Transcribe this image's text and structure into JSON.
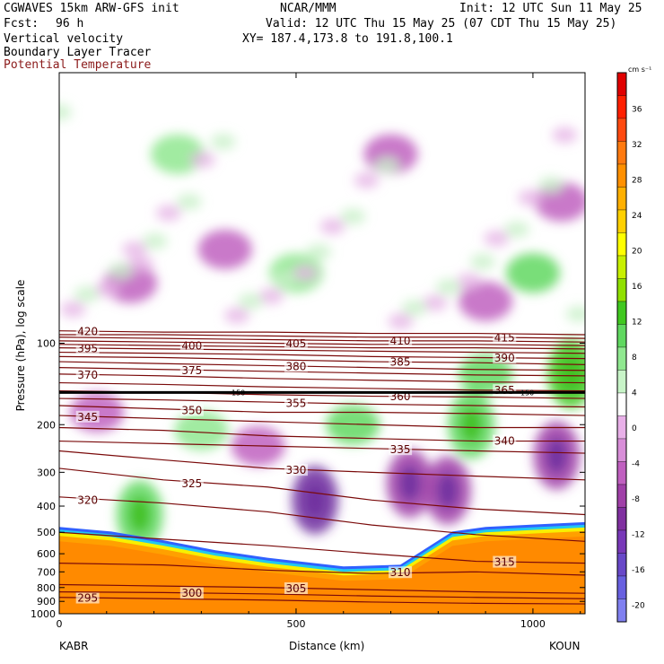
{
  "header": {
    "model": "CGWAVES 15km ARW-GFS init",
    "org": "NCAR/MMM",
    "init": "Init: 12 UTC Sun 11 May 25",
    "fcst_label": "Fcst:",
    "fcst_value": "96 h",
    "valid": "Valid: 12 UTC Thu 15 May 25 (07 CDT Thu 15 May 25)",
    "field1": "Vertical velocity",
    "xy": "XY= 187.4,173.8 to 191.8,100.1",
    "field2": "Boundary Layer Tracer",
    "field3": "Potential Temperature"
  },
  "chart_data": {
    "type": "cross-section",
    "xlabel": "Distance (km)",
    "ylabel": "Pressure (hPa), log scale",
    "x_range": [
      0,
      1110
    ],
    "x_ticks": [
      0,
      500,
      1000
    ],
    "x_end_labels": [
      "KABR",
      "KOUN"
    ],
    "y_scale": "log",
    "y_range": [
      1000,
      10
    ],
    "y_ticks": [
      100,
      200,
      300,
      400,
      500,
      600,
      700,
      800,
      900,
      1000
    ],
    "colorbar": {
      "units": "cm s⁻¹",
      "labels": [
        36,
        32,
        28,
        24,
        20,
        16,
        12,
        8,
        4,
        0,
        -4,
        -8,
        -12,
        -16,
        -20
      ],
      "colors": [
        "#e00000",
        "#ff2000",
        "#ff4a10",
        "#ff7a10",
        "#ff9000",
        "#ffb000",
        "#ffd000",
        "#ffff00",
        "#c8f000",
        "#90e000",
        "#40c820",
        "#60d860",
        "#90e890",
        "#c8f4c8",
        "#ffffff",
        "#e8b0e8",
        "#d88ed8",
        "#c060c0",
        "#a040a8",
        "#8030a0",
        "#7838b8",
        "#6848c8",
        "#6860e0",
        "#8080f0"
      ]
    },
    "theta_contours": [
      {
        "value": 295,
        "p": [
          870,
          880,
          890,
          905,
          915,
          920
        ]
      },
      {
        "value": 300,
        "p": [
          830,
          835,
          845,
          860,
          870,
          880
        ]
      },
      {
        "value": 305,
        "p": [
          780,
          790,
          800,
          815,
          830,
          840
        ]
      },
      {
        "value": 310,
        "p": [
          650,
          660,
          690,
          710,
          700,
          720
        ]
      },
      {
        "value": 315,
        "p": [
          500,
          530,
          560,
          600,
          640,
          650
        ]
      },
      {
        "value": 320,
        "p": [
          370,
          390,
          420,
          470,
          510,
          540
        ]
      },
      {
        "value": 325,
        "p": [
          290,
          320,
          340,
          380,
          410,
          430
        ]
      },
      {
        "value": 330,
        "p": [
          250,
          270,
          290,
          300,
          310,
          320
        ]
      },
      {
        "value": 335,
        "p": [
          230,
          235,
          240,
          245,
          250,
          255
        ]
      },
      {
        "value": 340,
        "p": [
          205,
          210,
          220,
          225,
          230,
          230
        ]
      },
      {
        "value": 345,
        "p": [
          185,
          190,
          195,
          200,
          205,
          205
        ]
      },
      {
        "value": 350,
        "p": [
          170,
          175,
          180,
          180,
          182,
          185
        ]
      },
      {
        "value": 355,
        "p": [
          160,
          162,
          165,
          168,
          170,
          172
        ]
      },
      {
        "value": 360,
        "p": [
          150,
          152,
          155,
          157,
          158,
          160
        ]
      },
      {
        "value": 365,
        "p": [
          140,
          142,
          145,
          147,
          149,
          150
        ]
      },
      {
        "value": 370,
        "p": [
          130,
          132,
          135,
          137,
          139,
          140
        ]
      },
      {
        "value": 375,
        "p": [
          123,
          125,
          127,
          129,
          131,
          132
        ]
      },
      {
        "value": 380,
        "p": [
          117,
          119,
          121,
          123,
          125,
          126
        ]
      },
      {
        "value": 385,
        "p": [
          112,
          113,
          115,
          117,
          118,
          120
        ]
      },
      {
        "value": 390,
        "p": [
          108,
          109,
          110,
          112,
          113,
          114
        ]
      },
      {
        "value": 395,
        "p": [
          104,
          105,
          106,
          107,
          108,
          109
        ]
      },
      {
        "value": 400,
        "p": [
          101,
          102,
          103,
          104,
          104,
          105
        ]
      },
      {
        "value": 405,
        "p": [
          98,
          99,
          100,
          101,
          101,
          102
        ]
      },
      {
        "value": 410,
        "p": [
          95,
          96,
          97,
          98,
          98,
          99
        ]
      },
      {
        "value": 415,
        "p": [
          93,
          93,
          94,
          95,
          95,
          96
        ]
      },
      {
        "value": 420,
        "p": [
          90,
          91,
          91,
          92,
          92,
          93
        ]
      }
    ],
    "theta_x_knots": [
      0,
      220,
      440,
      660,
      880,
      1110
    ],
    "tropopause_p": 152,
    "tropopause_labels": [
      "150",
      "150"
    ],
    "w_features": [
      {
        "x": 540,
        "p": 380,
        "w": -14
      },
      {
        "x": 820,
        "p": 350,
        "w": -12
      },
      {
        "x": 740,
        "p": 330,
        "w": -10
      },
      {
        "x": 1050,
        "p": 260,
        "w": -10
      },
      {
        "x": 170,
        "p": 430,
        "w": 10
      },
      {
        "x": 620,
        "p": 200,
        "w": 8
      },
      {
        "x": 870,
        "p": 200,
        "w": 10
      },
      {
        "x": 1080,
        "p": 130,
        "w": 12
      },
      {
        "x": 900,
        "p": 130,
        "w": 8
      },
      {
        "x": 300,
        "p": 210,
        "w": 6
      },
      {
        "x": 420,
        "p": 240,
        "w": -6
      },
      {
        "x": 80,
        "p": 180,
        "w": -6
      },
      {
        "x": 700,
        "p": 20,
        "w": -8
      },
      {
        "x": 250,
        "p": 20,
        "w": 6
      },
      {
        "x": 500,
        "p": 55,
        "w": 6
      },
      {
        "x": 1060,
        "p": 30,
        "w": -8
      },
      {
        "x": 1000,
        "p": 55,
        "w": 8
      },
      {
        "x": 350,
        "p": 45,
        "w": -6
      },
      {
        "x": 150,
        "p": 60,
        "w": -6
      },
      {
        "x": 900,
        "p": 70,
        "w": -6
      }
    ],
    "boundary_layer_top_p": [
      500,
      520,
      560,
      610,
      650,
      700,
      690,
      520,
      500,
      490,
      480
    ],
    "boundary_layer_x": [
      0,
      110,
      220,
      330,
      440,
      600,
      720,
      830,
      900,
      1000,
      1110
    ],
    "tracer_max": 36
  }
}
